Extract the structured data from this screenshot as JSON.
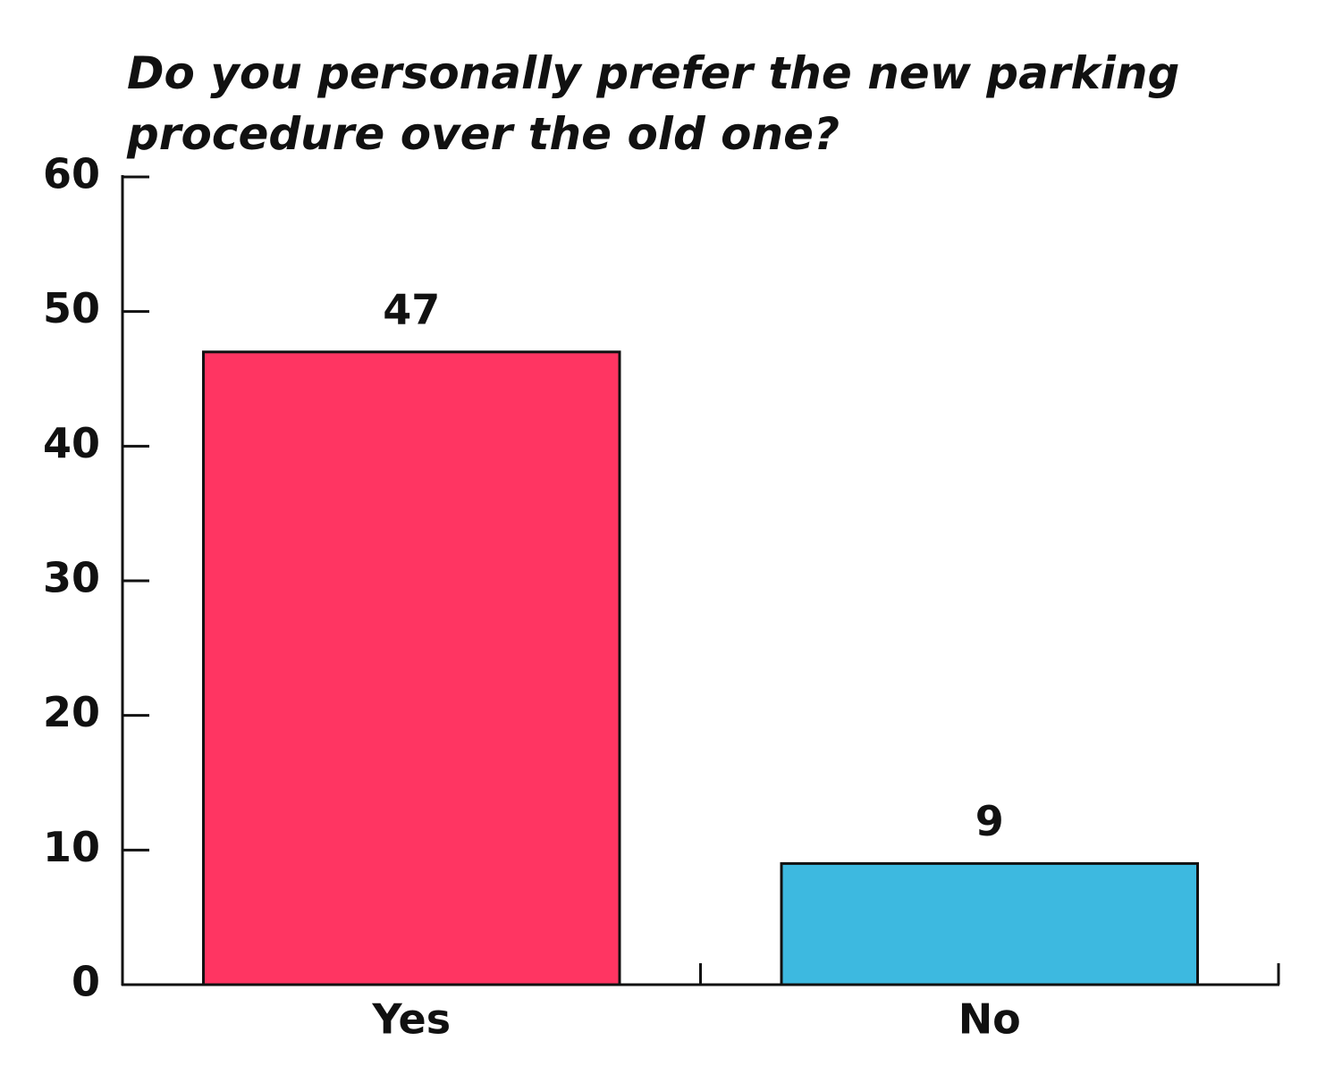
{
  "chart_data": {
    "type": "bar",
    "title": "Do you personally prefer the new parking procedure over the old one?",
    "categories": [
      "Yes",
      "No"
    ],
    "values": [
      47,
      9
    ],
    "colors": [
      "#ff3562",
      "#3db9e0"
    ],
    "ylim": [
      0,
      60
    ],
    "yticks": [
      0,
      10,
      20,
      30,
      40,
      50,
      60
    ],
    "grid": false
  }
}
